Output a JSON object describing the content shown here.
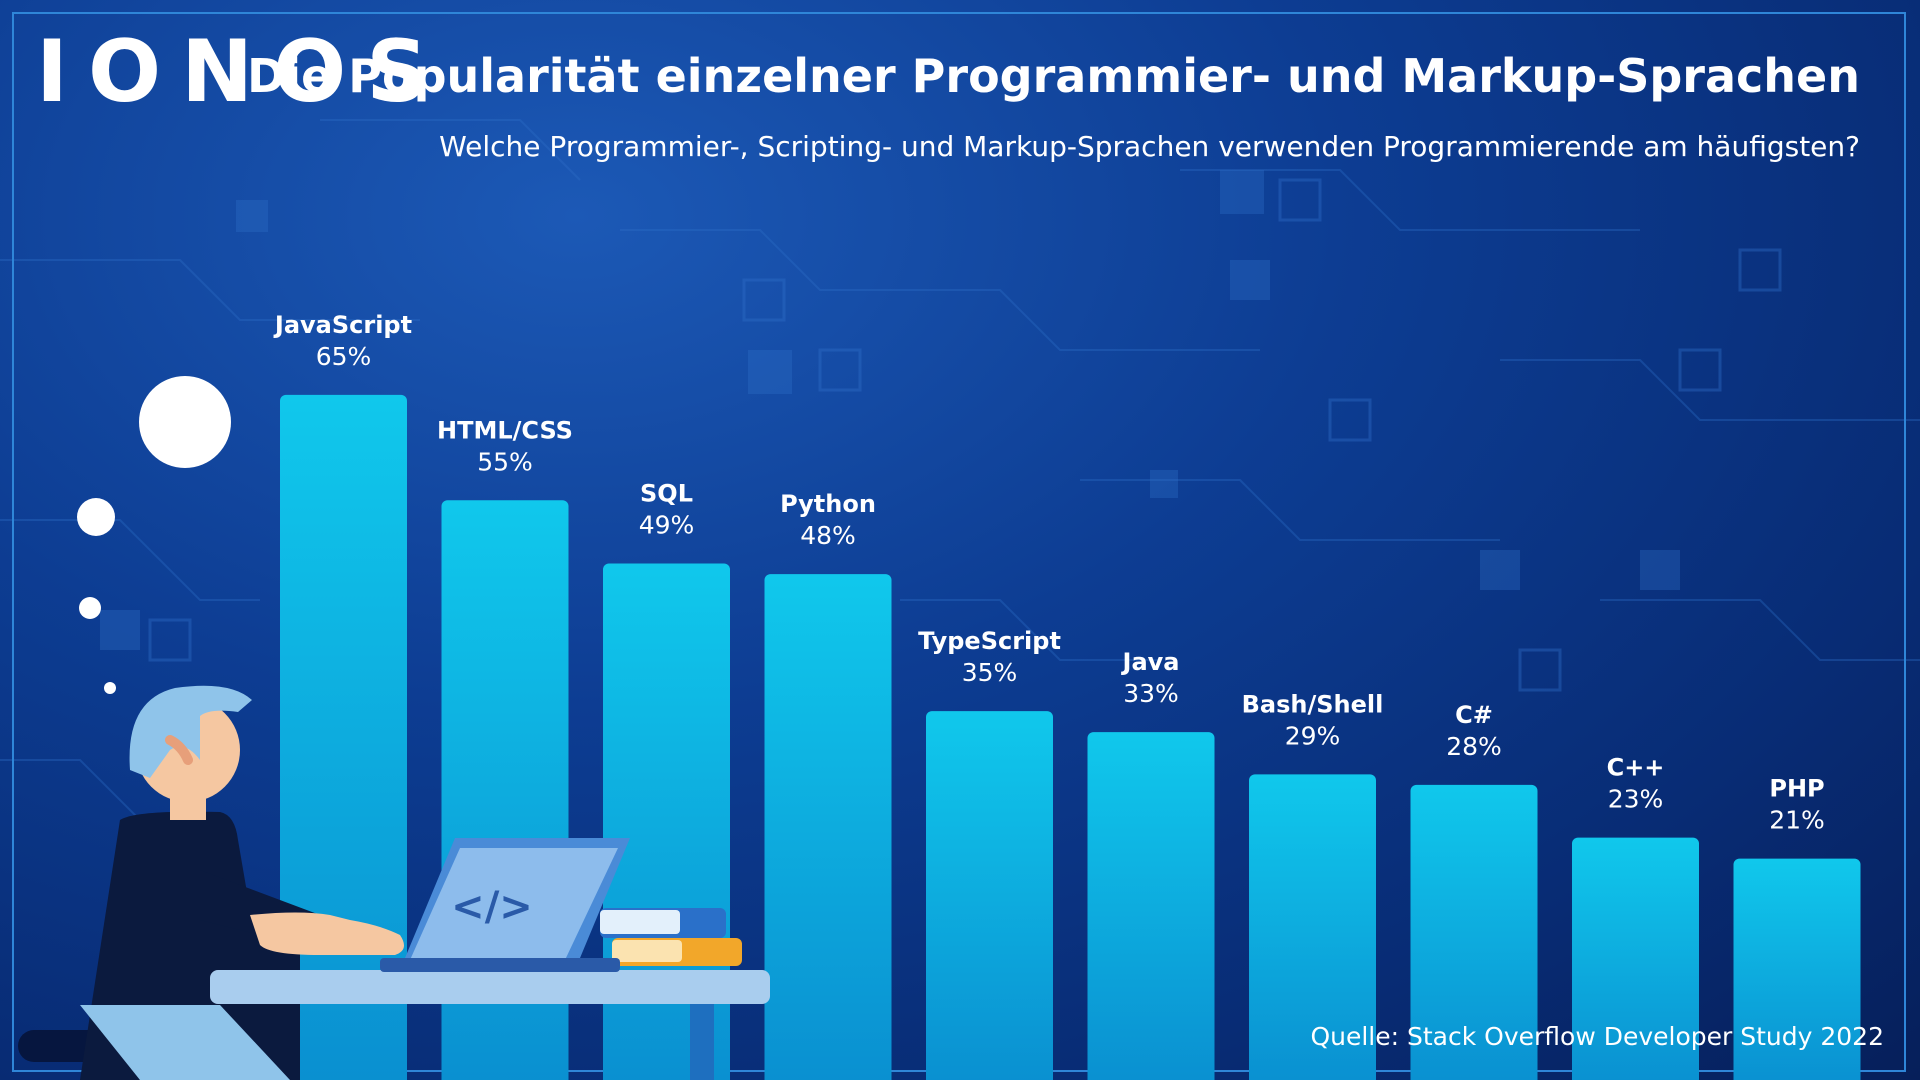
{
  "brand": "IONOS",
  "title": "Die Popularität einzelner Programmier- und Markup-Sprachen",
  "subtitle": "Welche Programmier-, Scripting- und Markup-Sprachen verwenden Programmierende am häufigsten?",
  "source": "Quelle: Stack Overflow Developer Study 2022",
  "colors": {
    "bar_top": "#10c8ec",
    "bar_bottom": "#0a8fd0",
    "background": "#0d3d93",
    "text": "#ffffff"
  },
  "illustration": {
    "code_icon": "</>"
  },
  "chart_data": {
    "type": "bar",
    "categories": [
      "JavaScript",
      "HTML/CSS",
      "SQL",
      "Python",
      "TypeScript",
      "Java",
      "Bash/Shell",
      "C#",
      "C++",
      "PHP"
    ],
    "values": [
      65,
      55,
      49,
      48,
      35,
      33,
      29,
      28,
      23,
      21
    ],
    "value_labels": [
      "65%",
      "55%",
      "49%",
      "48%",
      "35%",
      "33%",
      "29%",
      "28%",
      "23%",
      "21%"
    ],
    "value_unit": "%",
    "ylim": [
      0,
      100
    ],
    "grid": false,
    "legend": "none"
  }
}
